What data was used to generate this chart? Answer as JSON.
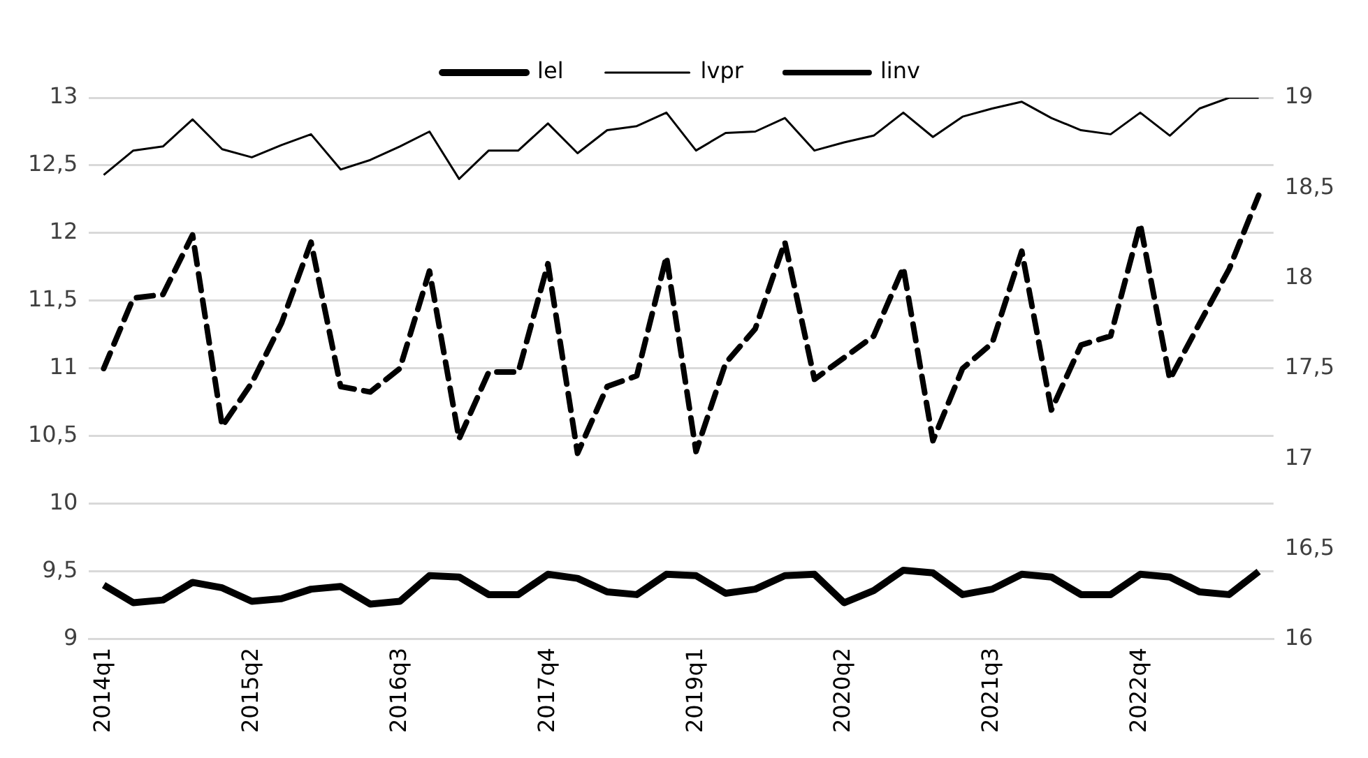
{
  "chart_data": {
    "type": "line",
    "categories": [
      "2014q1",
      null,
      null,
      null,
      null,
      "2015q2",
      null,
      null,
      null,
      null,
      "2016q3",
      null,
      null,
      null,
      null,
      "2017q4",
      null,
      null,
      null,
      null,
      "2019q1",
      null,
      null,
      null,
      null,
      "2020q2",
      null,
      null,
      null,
      null,
      "2021q3",
      null,
      null,
      null,
      null,
      "2022q4",
      null,
      null,
      null,
      null
    ],
    "series": [
      {
        "name": "lel",
        "color": "#000000",
        "line_style": "solid",
        "values": [
          9.4,
          9.27,
          9.29,
          9.42,
          9.38,
          9.28,
          9.3,
          9.37,
          9.39,
          9.26,
          9.28,
          9.47,
          9.46,
          9.33,
          9.33,
          9.48,
          9.45,
          9.35,
          9.33,
          9.48,
          9.47,
          9.34,
          9.37,
          9.47,
          9.48,
          9.27,
          9.36,
          9.51,
          9.49,
          9.33,
          9.37,
          9.48,
          9.46,
          9.33,
          9.33,
          9.48,
          9.46,
          9.35,
          9.33,
          9.5
        ]
      },
      {
        "name": "lvpr",
        "color": "#000000",
        "line_style": "solid",
        "values": [
          12.43,
          12.61,
          12.64,
          12.84,
          12.62,
          12.56,
          12.65,
          12.73,
          12.47,
          12.54,
          12.64,
          12.75,
          12.4,
          12.61,
          12.61,
          12.81,
          12.59,
          12.76,
          12.79,
          12.89,
          12.61,
          12.74,
          12.75,
          12.85,
          12.61,
          12.67,
          12.72,
          12.89,
          12.71,
          12.86,
          12.92,
          12.97,
          12.85,
          12.76,
          12.73,
          12.89,
          12.72,
          12.92,
          13.0,
          13.0
        ]
      },
      {
        "name": "linv",
        "color": "#000000",
        "line_style": "dashed",
        "axis": "y2",
        "values": [
          17.5,
          17.89,
          17.91,
          18.24,
          17.18,
          17.42,
          17.75,
          18.2,
          17.4,
          17.37,
          17.5,
          18.04,
          17.11,
          17.48,
          17.48,
          18.08,
          17.03,
          17.4,
          17.46,
          18.12,
          17.04,
          17.53,
          17.72,
          18.2,
          17.44,
          17.56,
          17.68,
          18.06,
          17.1,
          17.5,
          17.64,
          18.15,
          17.27,
          17.63,
          17.68,
          18.3,
          17.44,
          17.75,
          18.05,
          18.46
        ]
      }
    ],
    "ylim": [
      9,
      13
    ],
    "yticks": [
      9,
      {
        "value": 9.5,
        "label": "9,5"
      },
      10,
      {
        "value": 10.5,
        "label": "10,5"
      },
      11,
      {
        "value": 11.5,
        "label": "11,5"
      },
      12,
      {
        "value": 12.5,
        "label": "12,5"
      },
      13
    ],
    "y2lim": [
      16,
      19
    ],
    "y2ticks": [
      16,
      {
        "value": 16.5,
        "label": "16,5"
      },
      17,
      {
        "value": 17.5,
        "label": "17,5"
      },
      18,
      {
        "value": 18.5,
        "label": "18,5"
      },
      19
    ],
    "grid": "y",
    "legend": "top",
    "marker": "none"
  }
}
